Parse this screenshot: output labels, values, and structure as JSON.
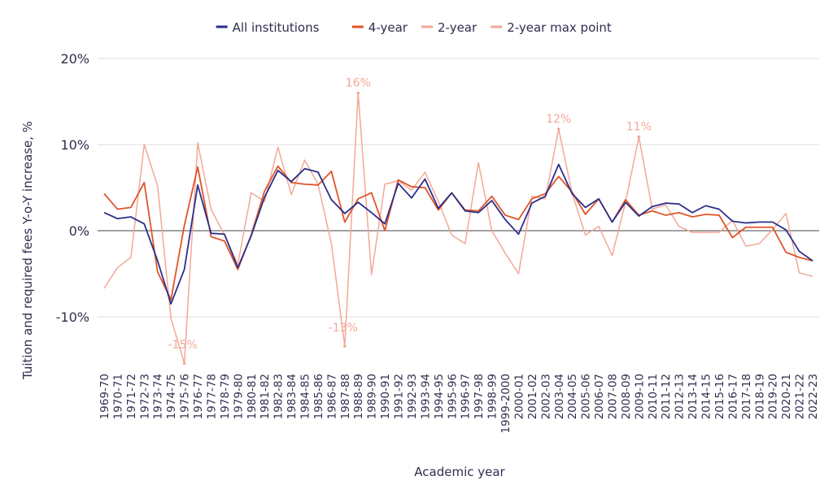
{
  "chart_data": {
    "type": "line",
    "xlabel": "Academic year",
    "ylabel": "Tuition and required fees Y-o-Y increase, %",
    "ylim": [
      -16.5,
      20.5
    ],
    "yticks": [
      {
        "value": -10,
        "label": "-10%"
      },
      {
        "value": 0,
        "label": "0%"
      },
      {
        "value": 10,
        "label": "10%"
      },
      {
        "value": 20,
        "label": "20%"
      }
    ],
    "grid": true,
    "legend_position": "top-center",
    "categories": [
      "1969-70",
      "1970-71",
      "1971-72",
      "1972-73",
      "1973-74",
      "1974-75",
      "1975-76",
      "1976-77",
      "1977-78",
      "1978-79",
      "1979-80",
      "1980-81",
      "1981-82",
      "1982-83",
      "1983-84",
      "1984-85",
      "1985-86",
      "1986-87",
      "1987-88",
      "1988-89",
      "1989-90",
      "1990-91",
      "1991-92",
      "1992-93",
      "1993-94",
      "1994-95",
      "1995-96",
      "1996-97",
      "1997-98",
      "1998-99",
      "1999-2000",
      "2000-01",
      "2001-02",
      "2002-03",
      "2003-04",
      "2004-05",
      "2005-06",
      "2006-07",
      "2007-08",
      "2008-09",
      "2009-10",
      "2010-11",
      "2011-12",
      "2012-13",
      "2013-14",
      "2014-15",
      "2015-16",
      "2016-17",
      "2017-18",
      "2018-19",
      "2019-20",
      "2020-21",
      "2021-22",
      "2022-23"
    ],
    "series": [
      {
        "name": "All institutions",
        "color": "#2b2f8a",
        "values": [
          2.1,
          1.4,
          1.6,
          0.8,
          -3.5,
          -8.5,
          -4.5,
          5.3,
          -0.3,
          -0.4,
          -4.3,
          -0.6,
          3.9,
          7.0,
          5.7,
          7.2,
          6.8,
          3.6,
          2.0,
          3.3,
          2.1,
          0.8,
          5.5,
          3.8,
          6.0,
          2.6,
          4.4,
          2.3,
          2.1,
          3.5,
          1.3,
          -0.4,
          3.2,
          4.0,
          7.7,
          4.3,
          2.7,
          3.7,
          1.0,
          3.3,
          1.7,
          2.8,
          3.2,
          3.1,
          2.1,
          2.9,
          2.5,
          1.1,
          0.9,
          1.0,
          1.0,
          0.1,
          -2.4,
          -3.5
        ]
      },
      {
        "name": "4-year",
        "color": "#e0542a",
        "values": [
          4.3,
          2.5,
          2.7,
          5.6,
          -4.8,
          -8.0,
          0.6,
          7.4,
          -0.7,
          -1.2,
          -4.5,
          -0.5,
          4.6,
          7.5,
          5.6,
          5.4,
          5.3,
          6.9,
          1.0,
          3.7,
          4.4,
          0.0,
          5.9,
          5.1,
          5.0,
          2.4,
          4.4,
          2.4,
          2.3,
          4.0,
          1.8,
          1.3,
          3.7,
          4.3,
          6.3,
          4.5,
          1.9,
          3.7,
          1.0,
          3.6,
          1.8,
          2.3,
          1.8,
          2.1,
          1.6,
          1.9,
          1.8,
          -0.8,
          0.4,
          0.4,
          0.4,
          -2.5,
          -3.1,
          -3.5
        ]
      },
      {
        "name": "2-year",
        "color": "#f2a898",
        "values": [
          -6.7,
          -4.3,
          -3.1,
          10.0,
          5.2,
          -10.2,
          -15.4,
          10.2,
          2.5,
          -0.5,
          -3.9,
          4.4,
          3.4,
          9.7,
          4.2,
          8.2,
          5.4,
          -1.5,
          -13.4,
          16.0,
          -5.1,
          5.4,
          5.8,
          4.7,
          6.8,
          3.4,
          -0.5,
          -1.5,
          7.9,
          0.0,
          -2.6,
          -5.0,
          4.0,
          3.7,
          11.8,
          4.4,
          -0.5,
          0.5,
          -2.9,
          3.3,
          10.9,
          2.5,
          3.0,
          0.5,
          -0.2,
          -0.2,
          -0.2,
          1.2,
          -1.8,
          -1.5,
          0.1,
          2.0,
          -4.9,
          -5.3
        ]
      },
      {
        "name": "2-year max point",
        "color": "#f2a898",
        "points": [
          {
            "category": "1975-76",
            "value": -15.4,
            "label": "-15%"
          },
          {
            "category": "1987-88",
            "value": -13.4,
            "label": "-13%"
          },
          {
            "category": "1988-89",
            "value": 16.0,
            "label": "16%"
          },
          {
            "category": "2003-04",
            "value": 11.8,
            "label": "12%"
          },
          {
            "category": "2009-10",
            "value": 10.9,
            "label": "11%"
          }
        ]
      }
    ]
  }
}
